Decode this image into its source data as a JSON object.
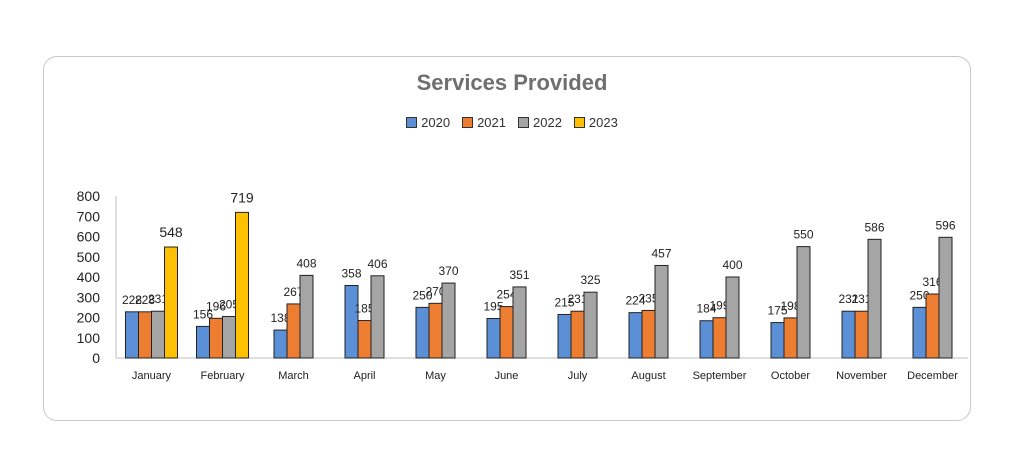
{
  "chart_data": {
    "type": "bar",
    "title": "Services Provided",
    "categories": [
      "January",
      "February",
      "March",
      "April",
      "May",
      "June",
      "July",
      "August",
      "September",
      "October",
      "November",
      "December"
    ],
    "series": [
      {
        "name": "2020",
        "color": "#5b8fd6",
        "values": [
          228,
          156,
          138,
          358,
          250,
          195,
          215,
          224,
          184,
          175,
          231,
          250
        ]
      },
      {
        "name": "2021",
        "color": "#ed7d31",
        "values": [
          228,
          196,
          267,
          185,
          270,
          254,
          231,
          235,
          199,
          198,
          231,
          316
        ]
      },
      {
        "name": "2022",
        "color": "#a5a5a5",
        "values": [
          231,
          205,
          408,
          406,
          370,
          351,
          325,
          457,
          400,
          550,
          586,
          596
        ]
      },
      {
        "name": "2023",
        "color": "#ffc000",
        "values": [
          548,
          719,
          null,
          null,
          null,
          null,
          null,
          null,
          null,
          null,
          null,
          null
        ]
      }
    ],
    "ylim": [
      0,
      800
    ],
    "yticks": [
      0,
      100,
      200,
      300,
      400,
      500,
      600,
      700,
      800
    ],
    "xlabel": "",
    "ylabel": "",
    "legend_position": "top",
    "grid": false
  }
}
